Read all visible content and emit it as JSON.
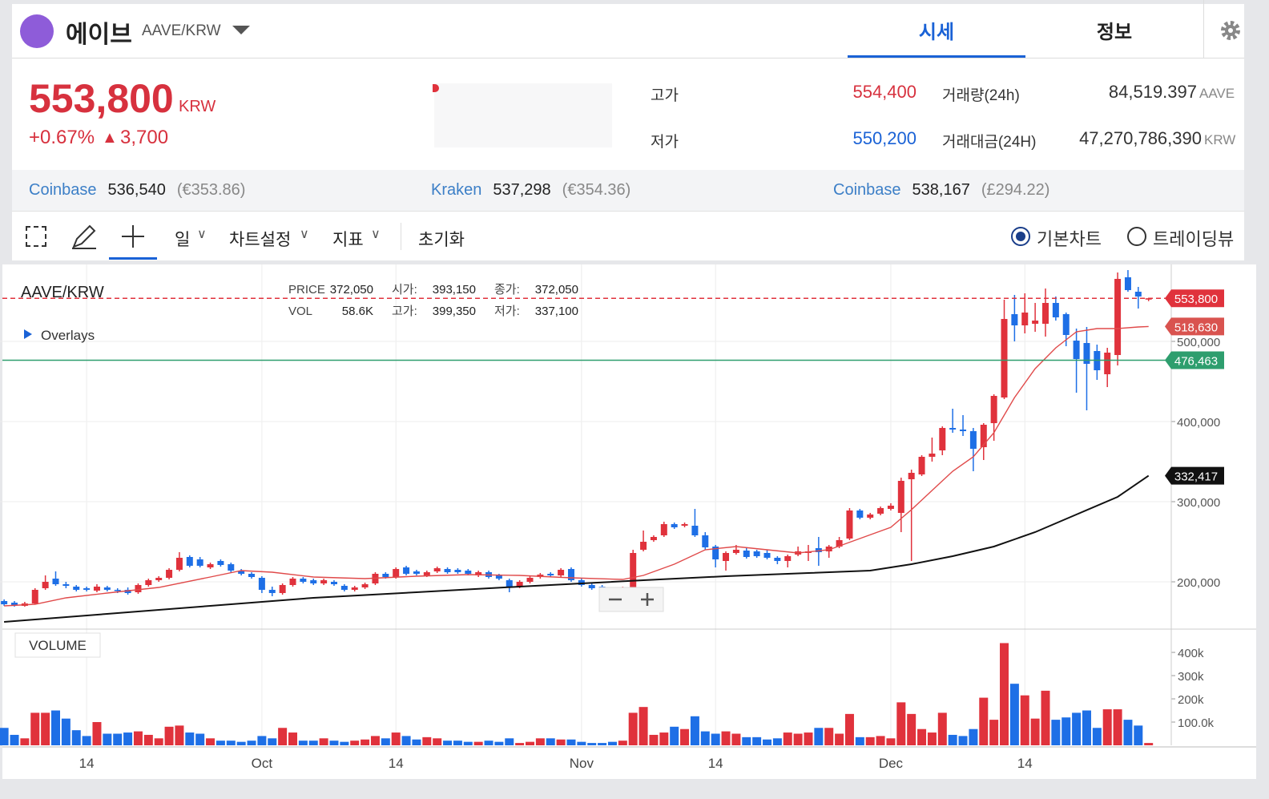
{
  "header": {
    "name": "에이브",
    "pair": "AAVE/KRW",
    "tabs": [
      "시세",
      "정보"
    ]
  },
  "price": {
    "value": "553,800",
    "unit": "KRW",
    "change_pct": "+0.67%",
    "arrow": "▲",
    "change": "3,700"
  },
  "stats": {
    "high_label": "고가",
    "high": "554,400",
    "low_label": "저가",
    "low": "550,200",
    "vol_label": "거래량(24h)",
    "vol": "84,519.397",
    "vol_unit": "AAVE",
    "amt_label": "거래대금(24H)",
    "amt": "47,270,786,390",
    "amt_unit": "KRW"
  },
  "exchanges": [
    {
      "name": "Coinbase",
      "price": "536,540",
      "fx": "(€353.86)"
    },
    {
      "name": "Kraken",
      "price": "537,298",
      "fx": "(€354.36)"
    },
    {
      "name": "Coinbase",
      "price": "538,167",
      "fx": "(£294.22)"
    }
  ],
  "toolbar": {
    "period": "일",
    "settings": "차트설정",
    "indicators": "지표",
    "reset": "초기화",
    "modes": [
      "기본차트",
      "트레이딩뷰"
    ]
  },
  "chart_data": {
    "type": "candlestick",
    "symbol": "AAVE/KRW",
    "overlays": "Overlays",
    "volume_label": "VOLUME",
    "info": [
      {
        "label": "PRICE",
        "value": "372,050"
      },
      {
        "label": "VOL",
        "value": "58.6K"
      },
      {
        "label": "시가:",
        "value": "393,150"
      },
      {
        "label": "고가:",
        "value": "399,350"
      },
      {
        "label": "종가:",
        "value": "372,050"
      },
      {
        "label": "저가:",
        "value": "337,100"
      }
    ],
    "up_color": "#e0323c",
    "down_color": "#1e6fe6",
    "xlim": [
      -0.4,
      113.2
    ],
    "xticks": [
      {
        "value": 8,
        "label": "14"
      },
      {
        "value": 25,
        "label": "Oct"
      },
      {
        "value": 38,
        "label": "14"
      },
      {
        "value": 56,
        "label": "Nov"
      },
      {
        "value": 69,
        "label": "14"
      },
      {
        "value": 86,
        "label": "Dec"
      },
      {
        "value": 99,
        "label": "14"
      }
    ],
    "ylim": [
      141000,
      596000
    ],
    "yticks": [
      {
        "value": 200000,
        "label": "200,000"
      },
      {
        "value": 300000,
        "label": "300,000"
      },
      {
        "value": 400000,
        "label": "400,000"
      },
      {
        "value": 500000,
        "label": "500,000"
      }
    ],
    "vol_ylim": [
      0,
      483000
    ],
    "vol_ticks": [
      {
        "value": 100000,
        "label": "100.0k"
      },
      {
        "value": 200000,
        "label": "200k"
      },
      {
        "value": 300000,
        "label": "300k"
      },
      {
        "value": 400000,
        "label": "400k"
      }
    ],
    "ohlc": [
      [
        176000,
        178000,
        170000,
        172000
      ],
      [
        174000,
        176000,
        169000,
        171000
      ],
      [
        170000,
        175000,
        169000,
        173000
      ],
      [
        173000,
        192000,
        172000,
        190000
      ],
      [
        192000,
        208000,
        190000,
        200000
      ],
      [
        204000,
        213000,
        195000,
        197000
      ],
      [
        197000,
        200000,
        192000,
        195000
      ],
      [
        194000,
        196000,
        188000,
        190000
      ],
      [
        192000,
        194000,
        188000,
        190000
      ],
      [
        189000,
        197000,
        187000,
        194000
      ],
      [
        193000,
        195000,
        188000,
        190000
      ],
      [
        190000,
        192000,
        186000,
        189000
      ],
      [
        190000,
        193000,
        184000,
        186000
      ],
      [
        187000,
        198000,
        185000,
        196000
      ],
      [
        196000,
        204000,
        194000,
        202000
      ],
      [
        202000,
        207000,
        200000,
        205000
      ],
      [
        205000,
        217000,
        203000,
        215000
      ],
      [
        215000,
        237000,
        213000,
        230000
      ],
      [
        231000,
        233000,
        218000,
        220000
      ],
      [
        228000,
        231000,
        218000,
        220000
      ],
      [
        218000,
        224000,
        216000,
        222000
      ],
      [
        226000,
        228000,
        219000,
        221000
      ],
      [
        222000,
        224000,
        212000,
        214000
      ],
      [
        214000,
        216000,
        208000,
        210000
      ],
      [
        210000,
        212000,
        204000,
        206000
      ],
      [
        205000,
        207000,
        186000,
        190000
      ],
      [
        190000,
        194000,
        182000,
        186000
      ],
      [
        186000,
        198000,
        184000,
        196000
      ],
      [
        196000,
        206000,
        194000,
        204000
      ],
      [
        204000,
        206000,
        198000,
        200000
      ],
      [
        202000,
        204000,
        196000,
        198000
      ],
      [
        198000,
        204000,
        196000,
        202000
      ],
      [
        200000,
        202000,
        195000,
        197000
      ],
      [
        195000,
        197000,
        188000,
        190000
      ],
      [
        190000,
        195000,
        188000,
        193000
      ],
      [
        193000,
        199000,
        191000,
        197000
      ],
      [
        198000,
        212000,
        196000,
        210000
      ],
      [
        210000,
        212000,
        204000,
        206000
      ],
      [
        206000,
        218000,
        204000,
        216000
      ],
      [
        218000,
        220000,
        208000,
        210000
      ],
      [
        213000,
        215000,
        208000,
        210000
      ],
      [
        208000,
        214000,
        206000,
        212000
      ],
      [
        213000,
        219000,
        211000,
        217000
      ],
      [
        216000,
        218000,
        210000,
        212000
      ],
      [
        215000,
        217000,
        210000,
        212000
      ],
      [
        214000,
        216000,
        208000,
        210000
      ],
      [
        208000,
        214000,
        206000,
        212000
      ],
      [
        212000,
        214000,
        204000,
        206000
      ],
      [
        208000,
        210000,
        202000,
        204000
      ],
      [
        202000,
        204000,
        187000,
        194000
      ],
      [
        194000,
        202000,
        192000,
        200000
      ],
      [
        200000,
        207000,
        198000,
        205000
      ],
      [
        206000,
        211000,
        204000,
        209000
      ],
      [
        210000,
        212000,
        206000,
        208000
      ],
      [
        208000,
        217000,
        206000,
        215000
      ],
      [
        216000,
        218000,
        200000,
        202000
      ],
      [
        202000,
        204000,
        194000,
        196000
      ],
      [
        196000,
        198000,
        190000,
        192000
      ],
      [
        194000,
        196000,
        184000,
        186000
      ],
      [
        190000,
        192000,
        184000,
        186000
      ],
      [
        188000,
        194000,
        186000,
        192000
      ],
      [
        192000,
        240000,
        190000,
        236000
      ],
      [
        240000,
        264000,
        238000,
        250000
      ],
      [
        252000,
        258000,
        250000,
        256000
      ],
      [
        258000,
        275000,
        256000,
        272000
      ],
      [
        272000,
        274000,
        266000,
        268000
      ],
      [
        270000,
        274000,
        268000,
        272000
      ],
      [
        270000,
        291000,
        256000,
        258000
      ],
      [
        258000,
        262000,
        240000,
        243000
      ],
      [
        244000,
        246000,
        218000,
        228000
      ],
      [
        226000,
        238000,
        214000,
        236000
      ],
      [
        236000,
        246000,
        234000,
        240000
      ],
      [
        239000,
        242000,
        229000,
        231000
      ],
      [
        238000,
        240000,
        230000,
        232000
      ],
      [
        236000,
        240000,
        228000,
        230000
      ],
      [
        230000,
        232000,
        222000,
        226000
      ],
      [
        226000,
        234000,
        218000,
        232000
      ],
      [
        234000,
        244000,
        232000,
        238000
      ],
      [
        236000,
        246000,
        226000,
        238000
      ],
      [
        242000,
        256000,
        220000,
        237000
      ],
      [
        238000,
        246000,
        230000,
        244000
      ],
      [
        244000,
        256000,
        242000,
        252000
      ],
      [
        254000,
        292000,
        252000,
        289000
      ],
      [
        289000,
        291000,
        278000,
        280000
      ],
      [
        280000,
        286000,
        278000,
        284000
      ],
      [
        285000,
        294000,
        283000,
        292000
      ],
      [
        291000,
        298000,
        289000,
        295000
      ],
      [
        286000,
        330000,
        262000,
        326000
      ],
      [
        328000,
        340000,
        226000,
        336000
      ],
      [
        334000,
        358000,
        332000,
        356000
      ],
      [
        356000,
        380000,
        350000,
        360000
      ],
      [
        364000,
        394000,
        358000,
        392000
      ],
      [
        392000,
        416000,
        386000,
        390000
      ],
      [
        390000,
        408000,
        382000,
        388000
      ],
      [
        388000,
        392000,
        338000,
        366000
      ],
      [
        368000,
        398000,
        352000,
        396000
      ],
      [
        398000,
        434000,
        376000,
        432000
      ],
      [
        430000,
        552000,
        428000,
        528000
      ],
      [
        534000,
        558000,
        500000,
        520000
      ],
      [
        520000,
        560000,
        510000,
        536000
      ],
      [
        522000,
        548000,
        512000,
        526000
      ],
      [
        522000,
        566000,
        506000,
        548000
      ],
      [
        548000,
        556000,
        526000,
        530000
      ],
      [
        534000,
        536000,
        494000,
        508000
      ],
      [
        501000,
        516000,
        436000,
        478000
      ],
      [
        498000,
        518000,
        414000,
        472000
      ],
      [
        488000,
        496000,
        452000,
        464000
      ],
      [
        459000,
        492000,
        443000,
        486000
      ],
      [
        483000,
        586000,
        470000,
        578000
      ],
      [
        580000,
        589000,
        562000,
        564000
      ],
      [
        562000,
        568000,
        541000,
        556000
      ],
      [
        552200,
        554400,
        550200,
        553800
      ]
    ],
    "volume": [
      75000,
      45000,
      30000,
      140000,
      140000,
      150000,
      115000,
      65000,
      40000,
      100000,
      50000,
      50000,
      55000,
      60000,
      45000,
      30000,
      80000,
      85000,
      55000,
      50000,
      30000,
      20000,
      20000,
      15000,
      20000,
      40000,
      30000,
      75000,
      55000,
      20000,
      20000,
      30000,
      20000,
      15000,
      20000,
      25000,
      40000,
      30000,
      55000,
      40000,
      25000,
      35000,
      30000,
      20000,
      20000,
      15000,
      15000,
      20000,
      15000,
      30000,
      10000,
      15000,
      30000,
      30000,
      25000,
      25000,
      15000,
      10000,
      10000,
      15000,
      20000,
      140000,
      165000,
      45000,
      55000,
      80000,
      70000,
      125000,
      60000,
      50000,
      60000,
      50000,
      35000,
      35000,
      25000,
      30000,
      55000,
      50000,
      55000,
      75000,
      75000,
      50000,
      135000,
      35000,
      35000,
      40000,
      30000,
      185000,
      135000,
      70000,
      55000,
      140000,
      45000,
      40000,
      70000,
      205000,
      110000,
      440000,
      265000,
      215000,
      115000,
      235000,
      110000,
      120000,
      140000,
      150000,
      75000,
      155000,
      155000,
      110000,
      85000,
      10000
    ],
    "lines": [
      {
        "color": "#e04a4a",
        "x": [
          0,
          3,
          6,
          10,
          15,
          20,
          23,
          26,
          30,
          35,
          40,
          45,
          50,
          55,
          60,
          62,
          65,
          68,
          71,
          74,
          77,
          80,
          83,
          86,
          88,
          90,
          92,
          94,
          96,
          98,
          100,
          102,
          104,
          106,
          108,
          110,
          111
        ],
        "values": [
          170000,
          172000,
          180000,
          186000,
          193000,
          206000,
          214000,
          212000,
          206000,
          204000,
          207000,
          209000,
          208000,
          205000,
          203000,
          208000,
          222000,
          240000,
          244000,
          240000,
          236000,
          240000,
          254000,
          268000,
          290000,
          314000,
          338000,
          356000,
          386000,
          430000,
          466000,
          492000,
          512000,
          516000,
          516000,
          518000,
          518630
        ]
      },
      {
        "color": "#111111",
        "x": [
          0,
          10,
          20,
          30,
          40,
          50,
          56,
          62,
          70,
          78,
          84,
          88,
          92,
          96,
          100,
          104,
          108,
          111
        ],
        "values": [
          150000,
          160000,
          170000,
          180000,
          187000,
          194000,
          198000,
          202000,
          207000,
          211000,
          214000,
          222000,
          232000,
          244000,
          262000,
          284000,
          306000,
          332417
        ]
      }
    ],
    "markers": [
      {
        "value": 553800,
        "label": "553,800",
        "color": "#e0323c",
        "line": "dashed"
      },
      {
        "value": 518630,
        "label": "518,630",
        "color": "#d9534f"
      },
      {
        "value": 476463,
        "label": "476,463",
        "color": "#2e9e6e",
        "line": "solid"
      },
      {
        "value": 332417,
        "label": "332,417",
        "color": "#111111"
      }
    ]
  }
}
